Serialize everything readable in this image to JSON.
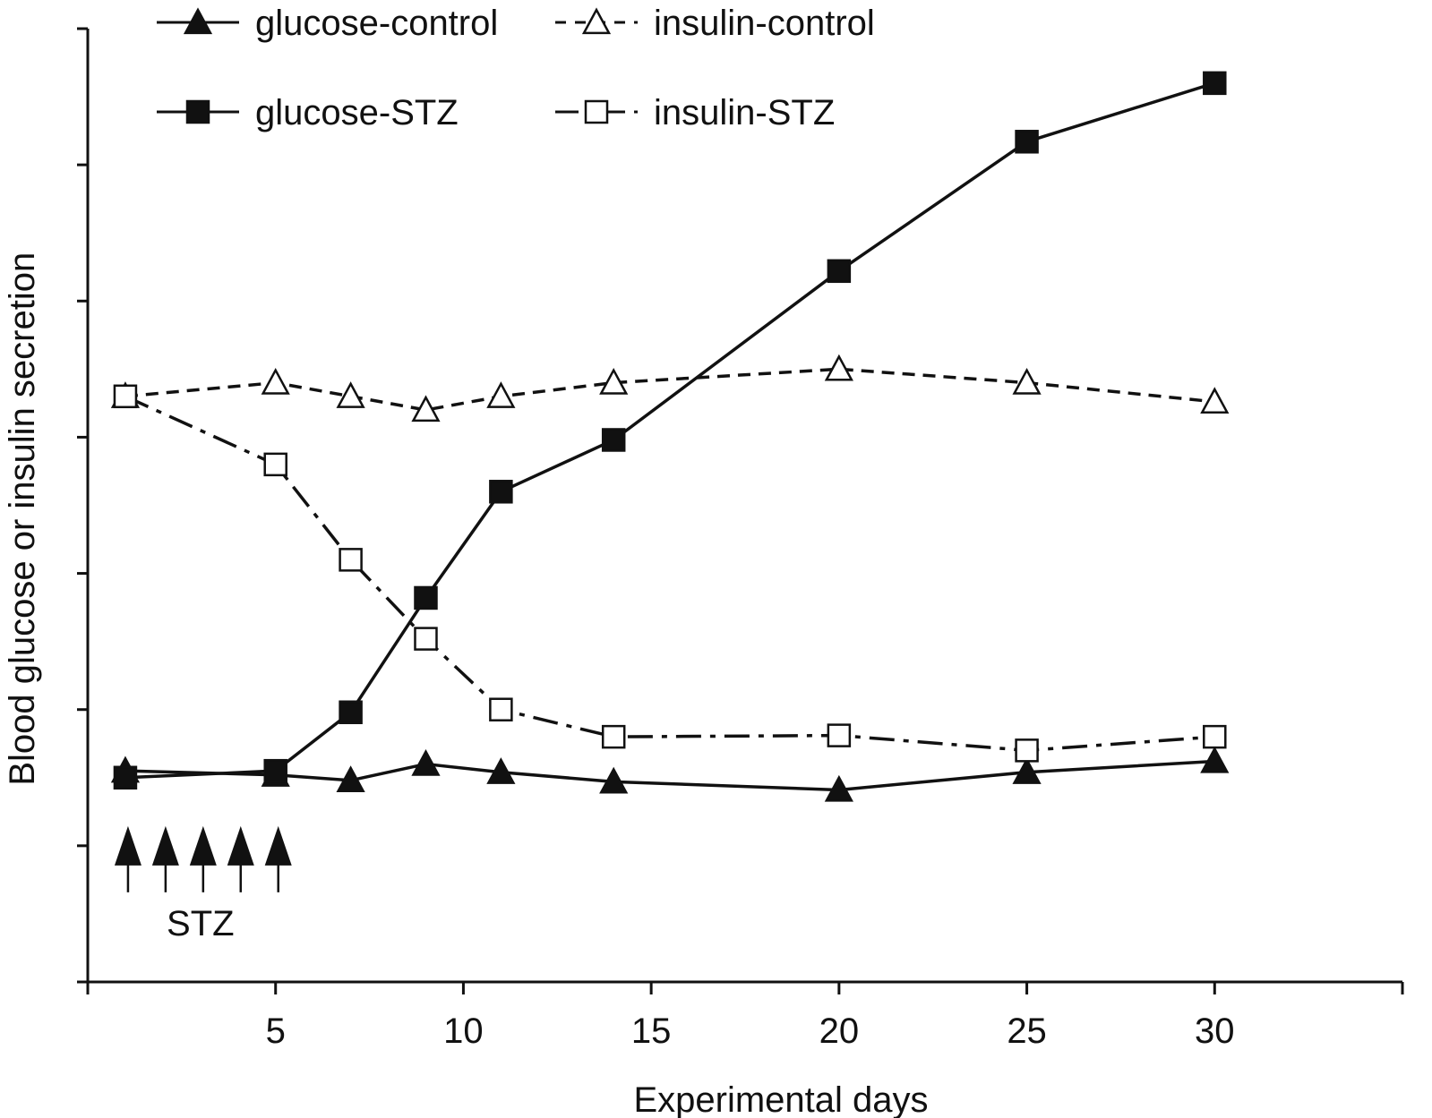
{
  "chart_data": {
    "type": "line",
    "title": "",
    "xlabel": "Experimental days",
    "ylabel": "Blood glucose or insulin secretion",
    "xlim": [
      0,
      35
    ],
    "ylim": [
      0,
      7
    ],
    "x_ticks": [
      5,
      10,
      15,
      20,
      25,
      30
    ],
    "x_tick_labels": [
      "5",
      "10",
      "15",
      "20",
      "25",
      "30"
    ],
    "x_minor_ticks": [
      0,
      35
    ],
    "y_ticks": [
      0,
      1,
      2,
      3,
      4,
      5,
      6,
      7
    ],
    "y_tick_labels": [],
    "grid": false,
    "legend_position": "top",
    "series": [
      {
        "name": "glucose-control",
        "marker": "filled-triangle",
        "line_style": "solid",
        "color": "#111111",
        "x": [
          1,
          5,
          7,
          9,
          11,
          14,
          20,
          25,
          30
        ],
        "y": [
          1.55,
          1.52,
          1.48,
          1.6,
          1.54,
          1.47,
          1.41,
          1.54,
          1.62
        ]
      },
      {
        "name": "insulin-control",
        "marker": "open-triangle",
        "line_style": "dashed",
        "color": "#111111",
        "x": [
          1,
          5,
          7,
          9,
          11,
          14,
          20,
          25,
          30
        ],
        "y": [
          4.3,
          4.4,
          4.3,
          4.2,
          4.3,
          4.4,
          4.5,
          4.4,
          4.26
        ]
      },
      {
        "name": "glucose-STZ",
        "marker": "filled-square",
        "line_style": "solid",
        "color": "#111111",
        "x": [
          1,
          5,
          7,
          9,
          11,
          14,
          20,
          25,
          30
        ],
        "y": [
          1.5,
          1.55,
          1.98,
          2.82,
          3.6,
          3.98,
          5.22,
          6.17,
          6.6
        ]
      },
      {
        "name": "insulin-STZ",
        "marker": "open-square",
        "line_style": "dashdot",
        "color": "#111111",
        "x": [
          1,
          5,
          7,
          9,
          11,
          14,
          20,
          25,
          30
        ],
        "y": [
          4.3,
          3.8,
          3.1,
          2.52,
          2.0,
          1.8,
          1.81,
          1.7,
          1.8
        ]
      }
    ],
    "annotations": {
      "stz_injection_days": [
        1,
        2,
        3,
        4,
        5
      ],
      "stz_label": "STZ"
    }
  }
}
